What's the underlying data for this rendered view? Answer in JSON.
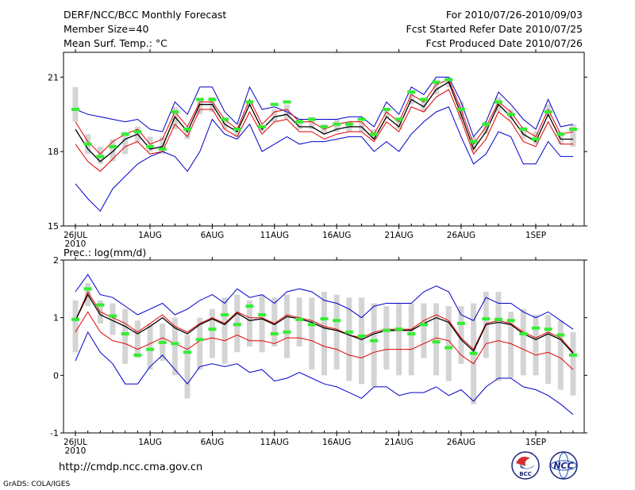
{
  "header": {
    "title": "DERF/NCC/BCC Monthly Forecast",
    "member_size": "Member Size=40",
    "variable": "Mean Surf. Temp.: °C",
    "period": "For 2010/07/26-2010/09/03",
    "started": "Fcst Started Refer Date 2010/07/25",
    "produced": "Fcst Produced Date 2010/07/26"
  },
  "footer": {
    "url": "http://cmdp.ncc.cma.gov.cn",
    "grads": "GrADS: COLA/IGES",
    "logo1": "BCC",
    "logo2": "NCC"
  },
  "colors": {
    "ensemble": "#0000cc",
    "red": "#e00000",
    "mean": "#000000",
    "obs": "#33ee33",
    "box": "#d4d4d4",
    "axis": "#000000"
  },
  "chart_data": [
    {
      "type": "line",
      "panel": "temperature",
      "title": "Mean Surf. Temp.: °C",
      "ylim": [
        15,
        22
      ],
      "yticks": [
        15,
        18,
        21
      ],
      "xlabel_ticks": [
        "26JUL",
        "1AUG",
        "6AUG",
        "11AUG",
        "16AUG",
        "21AUG",
        "26AUG",
        "1SEP"
      ],
      "xlabel_tick_days": [
        0,
        6,
        11,
        16,
        21,
        26,
        31,
        37
      ],
      "year_label": "2010",
      "days": 40,
      "series": [
        {
          "name": "ensemble max",
          "color": "blue",
          "values": [
            19.7,
            19.5,
            19.4,
            19.3,
            19.2,
            19.3,
            18.9,
            18.8,
            20.0,
            19.5,
            20.6,
            20.6,
            19.6,
            19.1,
            20.6,
            19.7,
            19.8,
            19.6,
            19.3,
            19.3,
            19.3,
            19.3,
            19.4,
            19.4,
            19.0,
            20.0,
            19.5,
            20.6,
            20.3,
            21.0,
            21.0,
            20.0,
            18.6,
            19.2,
            20.4,
            19.9,
            19.3,
            18.9,
            20.1,
            19.0,
            19.1
          ]
        },
        {
          "name": "ensemble min",
          "color": "blue",
          "values": [
            16.7,
            16.1,
            15.6,
            16.5,
            17.0,
            17.5,
            17.8,
            18.0,
            17.8,
            17.2,
            18.0,
            19.3,
            18.7,
            18.5,
            19.1,
            18.0,
            18.3,
            18.6,
            18.3,
            18.4,
            18.4,
            18.5,
            18.6,
            18.6,
            18.0,
            18.4,
            18.0,
            18.7,
            19.2,
            19.6,
            19.8,
            18.6,
            17.5,
            17.9,
            18.8,
            18.6,
            17.5,
            17.5,
            18.4,
            17.8,
            17.8
          ]
        },
        {
          "name": "upper",
          "color": "red",
          "values": [
            19.2,
            18.4,
            17.9,
            18.4,
            18.7,
            18.9,
            18.3,
            18.5,
            19.6,
            19.0,
            20.0,
            20.0,
            19.3,
            18.9,
            20.1,
            19.1,
            19.6,
            19.7,
            19.2,
            19.2,
            18.9,
            19.1,
            19.2,
            19.2,
            18.7,
            19.6,
            19.2,
            20.3,
            20.0,
            20.7,
            20.9,
            19.7,
            18.3,
            19.0,
            20.0,
            19.6,
            18.9,
            18.6,
            19.7,
            18.7,
            18.8
          ]
        },
        {
          "name": "ensemble mean",
          "color": "black",
          "values": [
            18.9,
            18.1,
            17.6,
            18.0,
            18.5,
            18.7,
            18.1,
            18.2,
            19.4,
            18.8,
            19.9,
            19.9,
            19.1,
            18.8,
            19.9,
            18.9,
            19.4,
            19.5,
            19.0,
            19.0,
            18.7,
            18.9,
            19.0,
            19.0,
            18.5,
            19.4,
            19.0,
            20.1,
            19.8,
            20.5,
            20.8,
            19.5,
            18.1,
            18.8,
            19.9,
            19.4,
            18.7,
            18.4,
            19.5,
            18.5,
            18.5
          ]
        },
        {
          "name": "lower",
          "color": "red",
          "values": [
            18.3,
            17.6,
            17.2,
            17.7,
            18.2,
            18.4,
            17.9,
            18.0,
            19.1,
            18.6,
            19.7,
            19.7,
            18.9,
            18.6,
            19.6,
            18.7,
            19.2,
            19.3,
            18.8,
            18.8,
            18.5,
            18.7,
            18.8,
            18.8,
            18.4,
            19.2,
            18.8,
            19.8,
            19.6,
            20.2,
            20.5,
            19.3,
            17.9,
            18.5,
            19.6,
            19.2,
            18.4,
            18.2,
            19.2,
            18.3,
            18.3
          ]
        }
      ],
      "boxes": [
        [
          19.2,
          20.6
        ],
        [
          17.9,
          18.7
        ],
        [
          17.5,
          18.2
        ],
        [
          17.6,
          18.5
        ],
        [
          17.9,
          18.8
        ],
        [
          18.4,
          19.0
        ],
        [
          18.0,
          18.6
        ],
        [
          17.9,
          18.6
        ],
        [
          18.9,
          19.8
        ],
        [
          18.5,
          19.0
        ],
        [
          19.5,
          20.1
        ],
        [
          19.6,
          20.2
        ],
        [
          18.9,
          19.3
        ],
        [
          18.6,
          19.0
        ],
        [
          19.8,
          20.0
        ],
        [
          18.8,
          19.0
        ],
        [
          19.2,
          19.7
        ],
        [
          19.3,
          19.9
        ],
        [
          18.9,
          19.3
        ],
        [
          18.9,
          19.4
        ],
        [
          18.7,
          19.1
        ],
        [
          18.8,
          19.3
        ],
        [
          18.8,
          19.2
        ],
        [
          18.8,
          19.2
        ],
        [
          18.5,
          18.9
        ],
        [
          19.4,
          19.7
        ],
        [
          18.9,
          19.3
        ],
        [
          19.9,
          20.4
        ],
        [
          19.6,
          20.1
        ],
        [
          20.3,
          20.8
        ],
        [
          20.6,
          21.0
        ],
        [
          19.3,
          20.0
        ],
        [
          18.0,
          18.6
        ],
        [
          18.7,
          19.2
        ],
        [
          19.6,
          20.2
        ],
        [
          19.3,
          19.7
        ],
        [
          18.5,
          19.0
        ],
        [
          18.3,
          18.8
        ],
        [
          19.4,
          19.9
        ],
        [
          18.3,
          18.8
        ],
        [
          18.2,
          19.1
        ]
      ],
      "observed": [
        19.7,
        18.3,
        17.8,
        18.2,
        18.7,
        18.8,
        18.2,
        18.1,
        19.6,
        18.9,
        20.1,
        20.1,
        19.3,
        18.9,
        20.0,
        19.0,
        19.9,
        20.0,
        19.2,
        19.3,
        19.0,
        19.1,
        19.1,
        19.3,
        18.7,
        19.7,
        19.3,
        20.4,
        20.1,
        20.8,
        20.9,
        19.7,
        18.4,
        19.1,
        20.0,
        19.5,
        18.9,
        18.5,
        19.6,
        18.7,
        18.9
      ]
    },
    {
      "type": "line",
      "panel": "precipitation",
      "title": "Prec.: log(mm/d)",
      "ylim": [
        -1,
        2
      ],
      "yticks": [
        -1,
        0,
        1,
        2
      ],
      "xlabel_ticks": [
        "26JUL",
        "1AUG",
        "6AUG",
        "11AUG",
        "16AUG",
        "21AUG",
        "26AUG",
        "1SEP"
      ],
      "xlabel_tick_days": [
        0,
        6,
        11,
        16,
        21,
        26,
        31,
        37
      ],
      "year_label": "2010",
      "days": 40,
      "series": [
        {
          "name": "ensemble max",
          "color": "blue",
          "values": [
            1.45,
            1.75,
            1.4,
            1.35,
            1.2,
            1.05,
            1.15,
            1.25,
            1.05,
            1.15,
            1.3,
            1.4,
            1.25,
            1.5,
            1.35,
            1.4,
            1.25,
            1.45,
            1.5,
            1.45,
            1.3,
            1.25,
            1.15,
            1.0,
            1.2,
            1.25,
            1.25,
            1.25,
            1.45,
            1.55,
            1.45,
            1.05,
            0.95,
            1.35,
            1.25,
            1.25,
            1.1,
            1.0,
            1.1,
            0.95,
            0.8
          ]
        },
        {
          "name": "ensemble min",
          "color": "blue",
          "values": [
            0.25,
            0.75,
            0.4,
            0.2,
            -0.15,
            -0.15,
            0.15,
            0.35,
            0.1,
            -0.15,
            0.15,
            0.2,
            0.15,
            0.2,
            0.05,
            0.1,
            -0.1,
            -0.05,
            0.05,
            -0.05,
            -0.15,
            -0.2,
            -0.3,
            -0.4,
            -0.2,
            -0.2,
            -0.35,
            -0.3,
            -0.3,
            -0.2,
            -0.35,
            -0.25,
            -0.45,
            -0.2,
            -0.05,
            -0.05,
            -0.2,
            -0.25,
            -0.35,
            -0.5,
            -0.68
          ]
        },
        {
          "name": "upper",
          "color": "red",
          "values": [
            0.95,
            1.45,
            1.1,
            1.0,
            0.9,
            0.75,
            0.9,
            1.05,
            0.85,
            0.75,
            0.9,
            1.0,
            0.9,
            1.1,
            1.0,
            1.0,
            0.9,
            1.05,
            1.0,
            0.95,
            0.85,
            0.8,
            0.7,
            0.65,
            0.75,
            0.8,
            0.8,
            0.8,
            0.95,
            1.05,
            0.95,
            0.65,
            0.45,
            0.9,
            0.95,
            0.9,
            0.75,
            0.65,
            0.75,
            0.65,
            0.4
          ]
        },
        {
          "name": "ensemble mean",
          "color": "black",
          "values": [
            0.95,
            1.4,
            1.05,
            0.95,
            0.85,
            0.72,
            0.85,
            1.0,
            0.82,
            0.72,
            0.88,
            0.98,
            0.88,
            1.08,
            0.95,
            0.98,
            0.88,
            1.02,
            0.98,
            0.92,
            0.82,
            0.78,
            0.7,
            0.62,
            0.72,
            0.78,
            0.78,
            0.78,
            0.9,
            1.0,
            0.92,
            0.62,
            0.42,
            0.88,
            0.92,
            0.88,
            0.72,
            0.62,
            0.72,
            0.62,
            0.38
          ]
        },
        {
          "name": "lower",
          "color": "red",
          "values": [
            0.75,
            1.1,
            0.75,
            0.6,
            0.55,
            0.45,
            0.55,
            0.65,
            0.55,
            0.45,
            0.6,
            0.65,
            0.6,
            0.7,
            0.6,
            0.6,
            0.55,
            0.65,
            0.65,
            0.6,
            0.5,
            0.45,
            0.35,
            0.3,
            0.4,
            0.45,
            0.45,
            0.45,
            0.55,
            0.65,
            0.6,
            0.35,
            0.2,
            0.55,
            0.6,
            0.55,
            0.45,
            0.35,
            0.4,
            0.3,
            0.1
          ]
        }
      ],
      "boxes": [
        [
          0.4,
          1.3
        ],
        [
          1.2,
          1.6
        ],
        [
          0.9,
          1.3
        ],
        [
          0.7,
          1.25
        ],
        [
          0.2,
          1.15
        ],
        [
          0.3,
          0.95
        ],
        [
          0.1,
          0.9
        ],
        [
          0.25,
          0.9
        ],
        [
          0.0,
          1.0
        ],
        [
          -0.4,
          0.7
        ],
        [
          0.1,
          1.0
        ],
        [
          0.3,
          1.15
        ],
        [
          0.2,
          1.35
        ],
        [
          0.4,
          1.4
        ],
        [
          0.5,
          1.3
        ],
        [
          0.4,
          1.4
        ],
        [
          0.5,
          1.35
        ],
        [
          0.3,
          1.4
        ],
        [
          0.5,
          1.35
        ],
        [
          0.1,
          1.35
        ],
        [
          0.0,
          1.45
        ],
        [
          0.1,
          1.4
        ],
        [
          -0.1,
          1.35
        ],
        [
          -0.15,
          1.35
        ],
        [
          -0.2,
          1.25
        ],
        [
          0.1,
          1.2
        ],
        [
          0.0,
          1.25
        ],
        [
          0.0,
          1.25
        ],
        [
          0.3,
          1.25
        ],
        [
          0.0,
          1.25
        ],
        [
          -0.1,
          1.2
        ],
        [
          0.2,
          1.2
        ],
        [
          -0.5,
          1.25
        ],
        [
          0.3,
          1.45
        ],
        [
          -0.1,
          1.45
        ],
        [
          -0.05,
          1.1
        ],
        [
          0.0,
          1.15
        ],
        [
          0.0,
          1.05
        ],
        [
          -0.15,
          1.05
        ],
        [
          -0.25,
          0.95
        ],
        [
          -0.35,
          0.75
        ]
      ],
      "observed": [
        0.97,
        1.5,
        1.22,
        1.03,
        0.72,
        0.35,
        0.45,
        0.57,
        0.55,
        0.4,
        0.62,
        0.8,
        1.05,
        0.88,
        1.2,
        1.05,
        0.72,
        0.75,
        0.97,
        0.88,
        0.98,
        0.95,
        0.75,
        0.68,
        0.6,
        0.78,
        0.8,
        0.72,
        0.88,
        0.58,
        0.48,
        0.9,
        0.38,
        0.98,
        0.97,
        0.95,
        0.72,
        0.82,
        0.8,
        0.7,
        0.35
      ]
    }
  ]
}
